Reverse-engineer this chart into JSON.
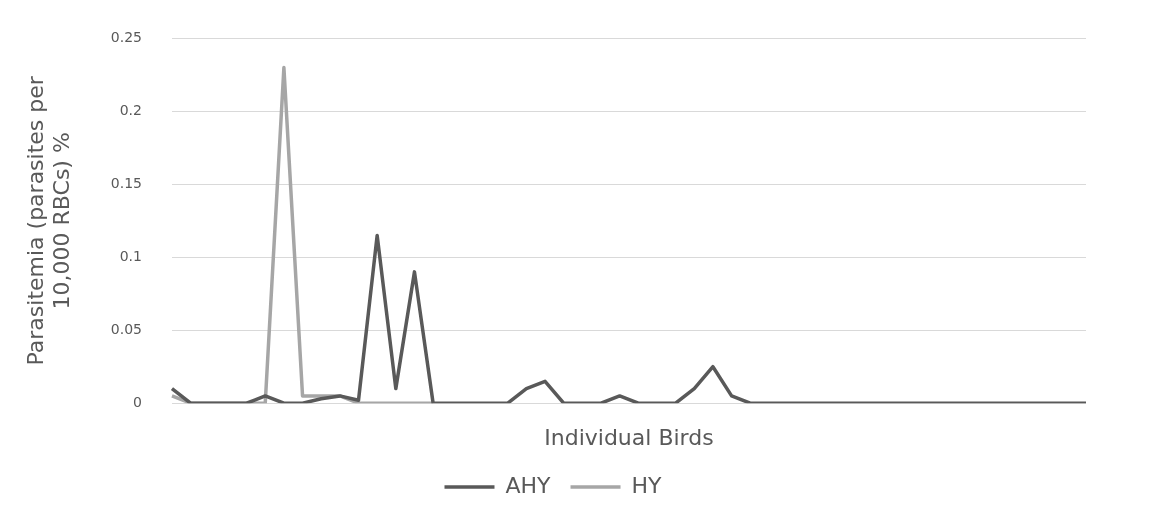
{
  "chart_data": {
    "type": "line",
    "xlabel": "Individual Birds",
    "ylabel": "Parasitemia (parasites per 10,000 RBCs) %",
    "categories": [
      null,
      null,
      null,
      null,
      null,
      null,
      null,
      null,
      null,
      null,
      null,
      null,
      null,
      null,
      null,
      null,
      null,
      null,
      null,
      null,
      null,
      null,
      null,
      null,
      null,
      null,
      null,
      null,
      null,
      null,
      null,
      null,
      null,
      null,
      null,
      null,
      null,
      null,
      null,
      null,
      null,
      null,
      null,
      null,
      null,
      null,
      null,
      null,
      null,
      null
    ],
    "series": [
      {
        "name": "AHY",
        "color": "#595959",
        "values": [
          0.01,
          0,
          0,
          0,
          0,
          0.005,
          0,
          0,
          0.003,
          0.005,
          0.002,
          0.115,
          0.01,
          0.09,
          0,
          0,
          0,
          0,
          0,
          0.01,
          0.015,
          0,
          0,
          0,
          0.005,
          0,
          0,
          0,
          0.01,
          0.025,
          0.005,
          0,
          0,
          0,
          0,
          0,
          0,
          0,
          0,
          0,
          0,
          0,
          0,
          0,
          0,
          0,
          0,
          0,
          0,
          0
        ]
      },
      {
        "name": "HY",
        "color": "#a6a6a6",
        "values": [
          0.005,
          0,
          0,
          0,
          0,
          0,
          0.23,
          0.005,
          0.005,
          0.005,
          0,
          0,
          0,
          0,
          0,
          null,
          null,
          null,
          null,
          null,
          null,
          null,
          null,
          null,
          null,
          null,
          null,
          null,
          null,
          null,
          null,
          null,
          null,
          null,
          null,
          null,
          null,
          null,
          null,
          null,
          null,
          null,
          null,
          null,
          null,
          null,
          null,
          null,
          null,
          null
        ]
      }
    ],
    "ylim": [
      0,
      0.25
    ],
    "yticks": [
      0,
      0.05,
      0.1,
      0.15,
      0.2,
      0.25
    ],
    "grid": "y",
    "legend": "bottom",
    "marker": "none",
    "line_style": "solid"
  }
}
